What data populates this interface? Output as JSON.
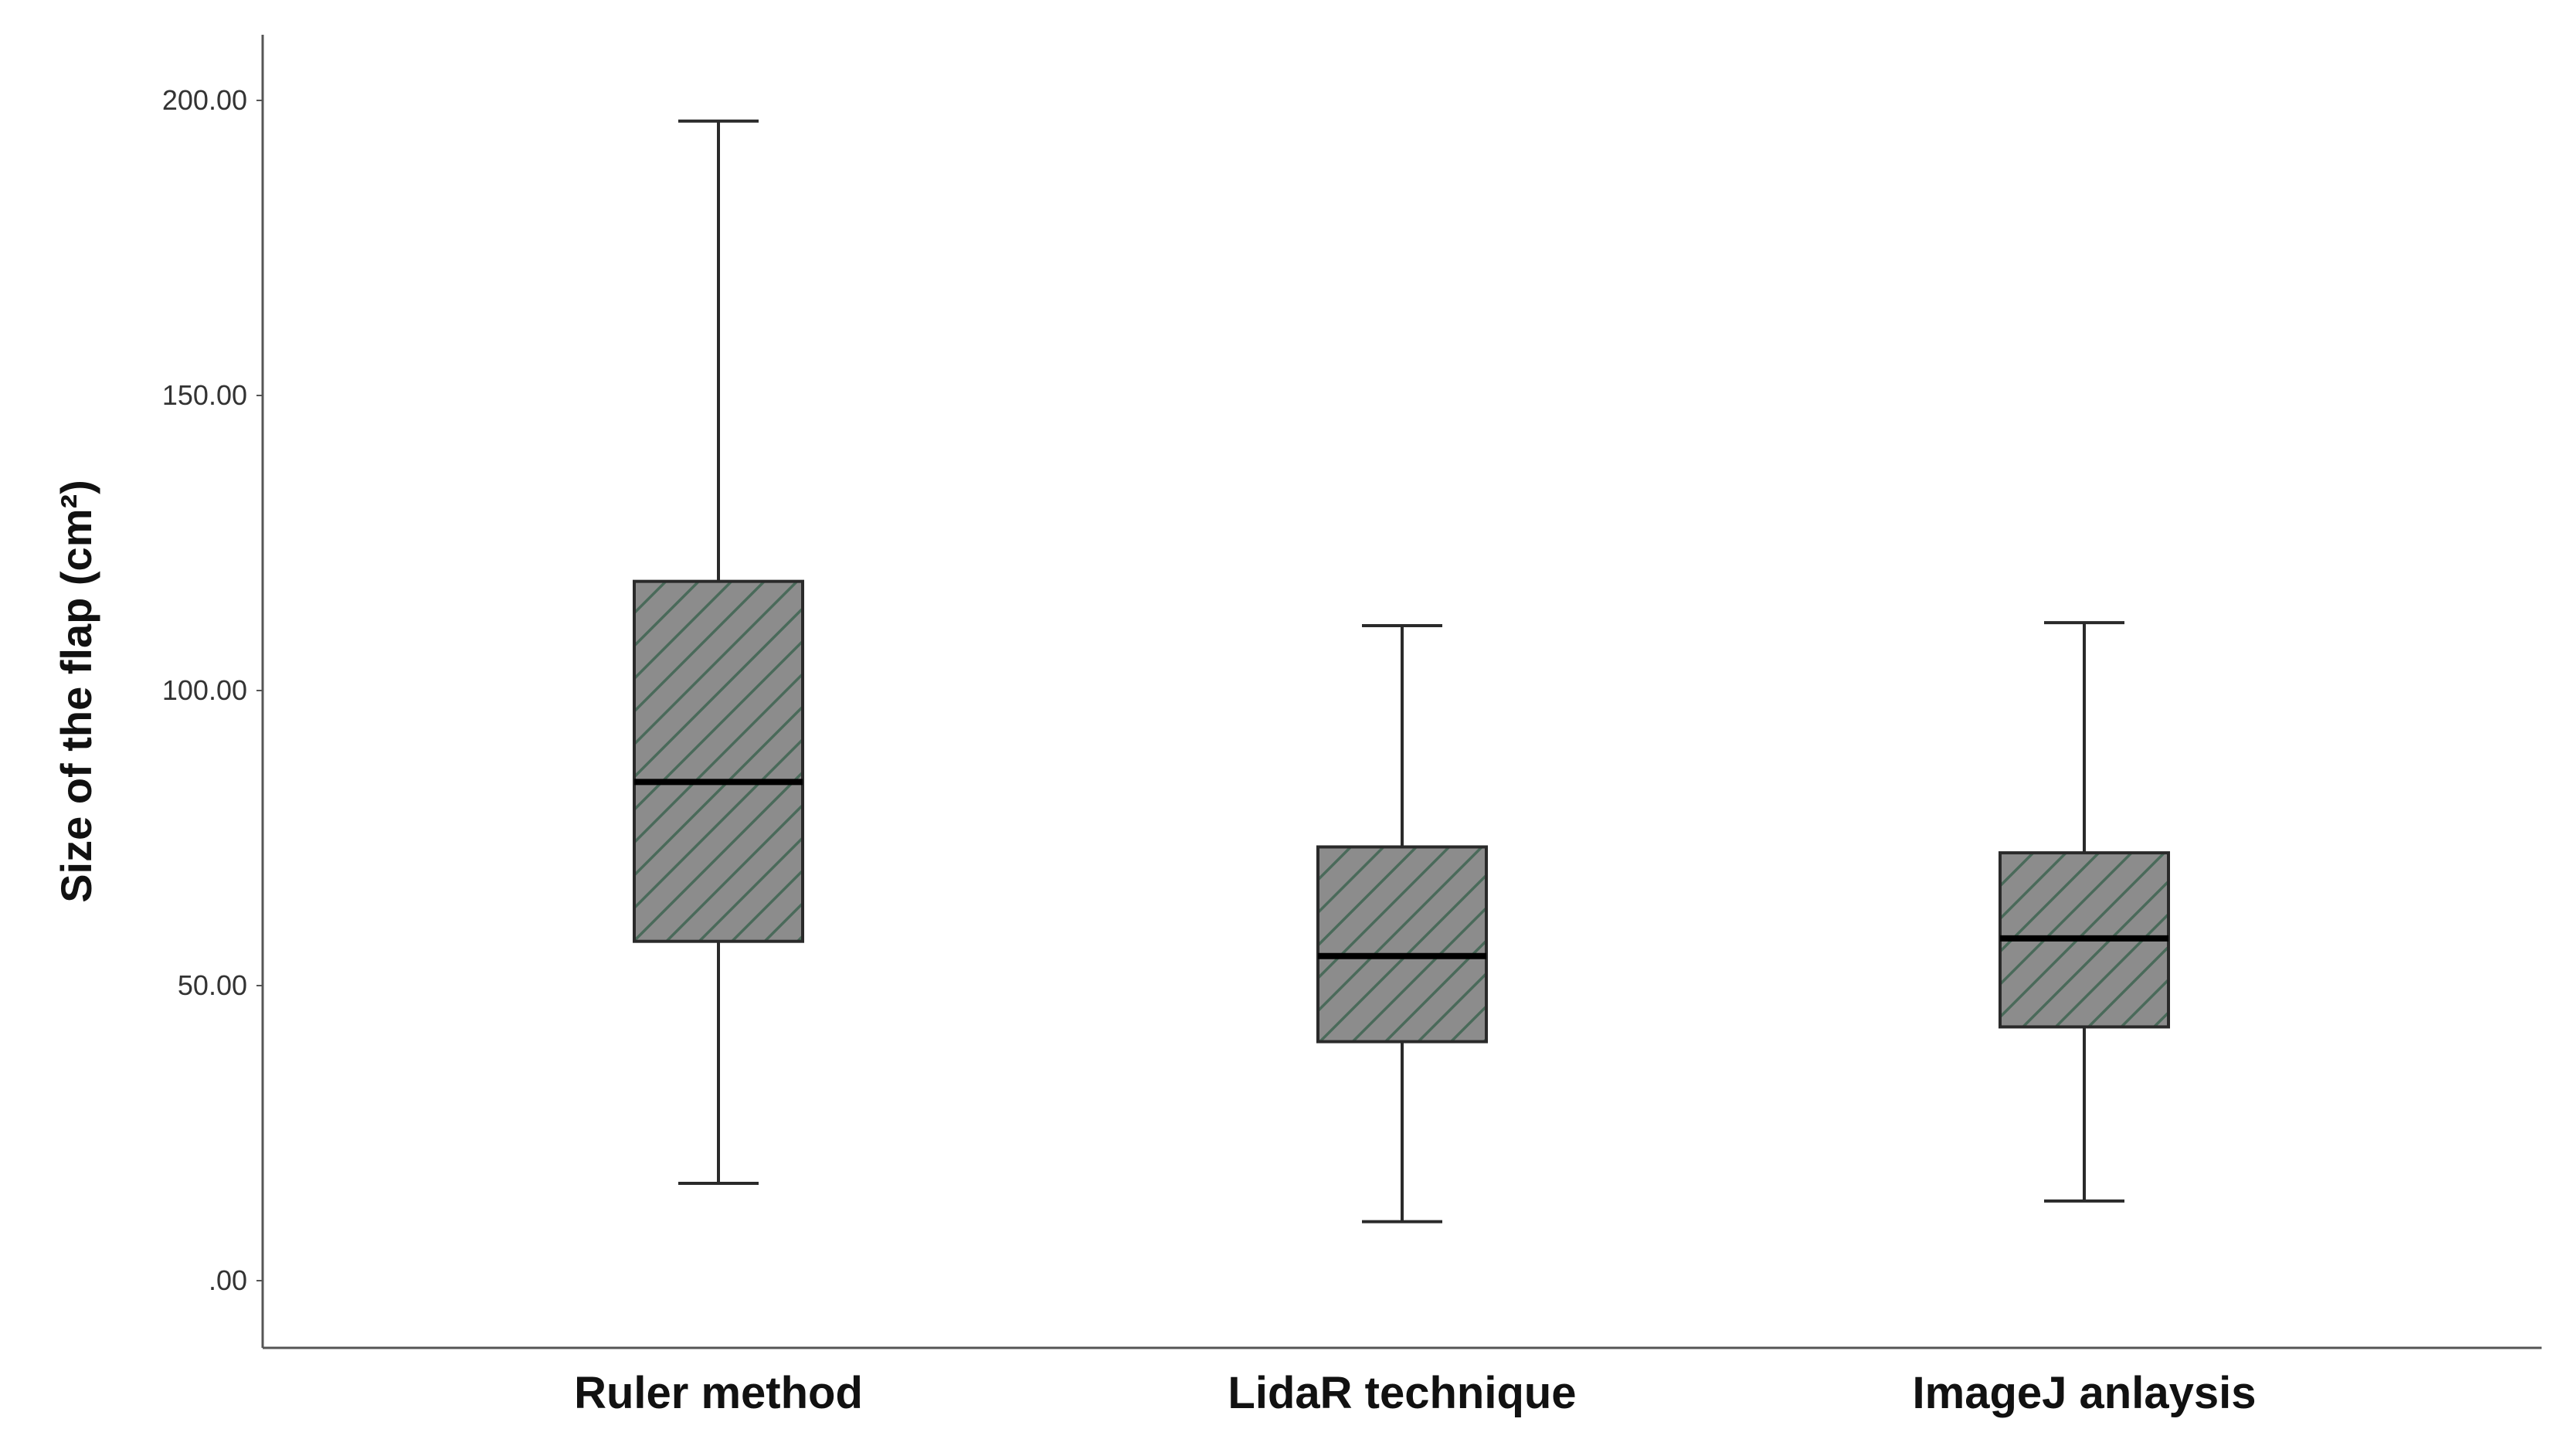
{
  "chart_data": {
    "type": "boxplot",
    "title": "",
    "xlabel": "",
    "ylabel": "Size of the flap (cm²)",
    "ylim": [
      -10,
      210
    ],
    "yticks": [
      0,
      50,
      100,
      150,
      200
    ],
    "ytick_labels": [
      ".00",
      "50.00",
      "100.00",
      "150.00",
      "200.00"
    ],
    "grid": false,
    "categories": [
      "Ruler method",
      "LidaR technique",
      "ImageJ anlaysis"
    ],
    "boxes": [
      {
        "category": "Ruler method",
        "min": 16.5,
        "q1": 57.5,
        "median": 84.5,
        "q3": 118.5,
        "max": 196.5
      },
      {
        "category": "LidaR technique",
        "min": 10.0,
        "q1": 40.5,
        "median": 55.0,
        "q3": 73.5,
        "max": 111.0
      },
      {
        "category": "ImageJ anlaysis",
        "min": 13.5,
        "q1": 43.0,
        "median": 58.0,
        "q3": 72.5,
        "max": 111.5
      }
    ],
    "colors": {
      "box_fill": "#8c8c8c",
      "hatch": "#4a6a5a",
      "stroke": "#2a2a2a",
      "median": "#000000",
      "axis": "#555555"
    }
  }
}
